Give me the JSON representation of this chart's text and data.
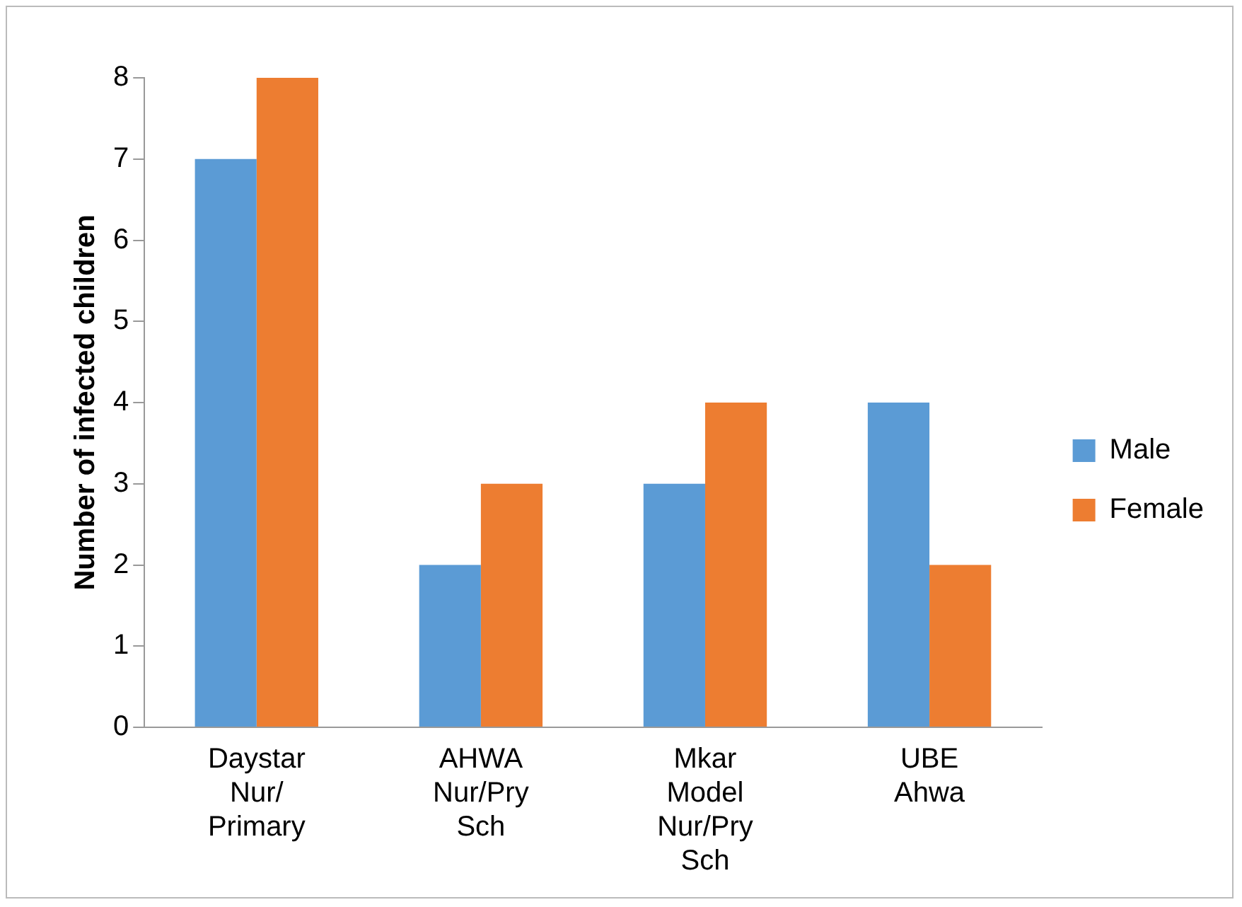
{
  "chart_data": {
    "type": "bar",
    "ylabel": "Number of infected children",
    "categories": [
      "Daystar\nNur/\nPrimary",
      "AHWA\nNur/Pry\nSch",
      "Mkar\nModel\nNur/Pry\nSch",
      "UBE\nAhwa"
    ],
    "series": [
      {
        "name": "Male",
        "color": "#5b9bd5",
        "values": [
          7,
          2,
          3,
          4
        ]
      },
      {
        "name": "Female",
        "color": "#ed7d31",
        "values": [
          8,
          3,
          4,
          2
        ]
      }
    ],
    "ylim": [
      0,
      8
    ],
    "yticks": [
      0,
      1,
      2,
      3,
      4,
      5,
      6,
      7,
      8
    ],
    "grid": false,
    "legend": "right"
  }
}
